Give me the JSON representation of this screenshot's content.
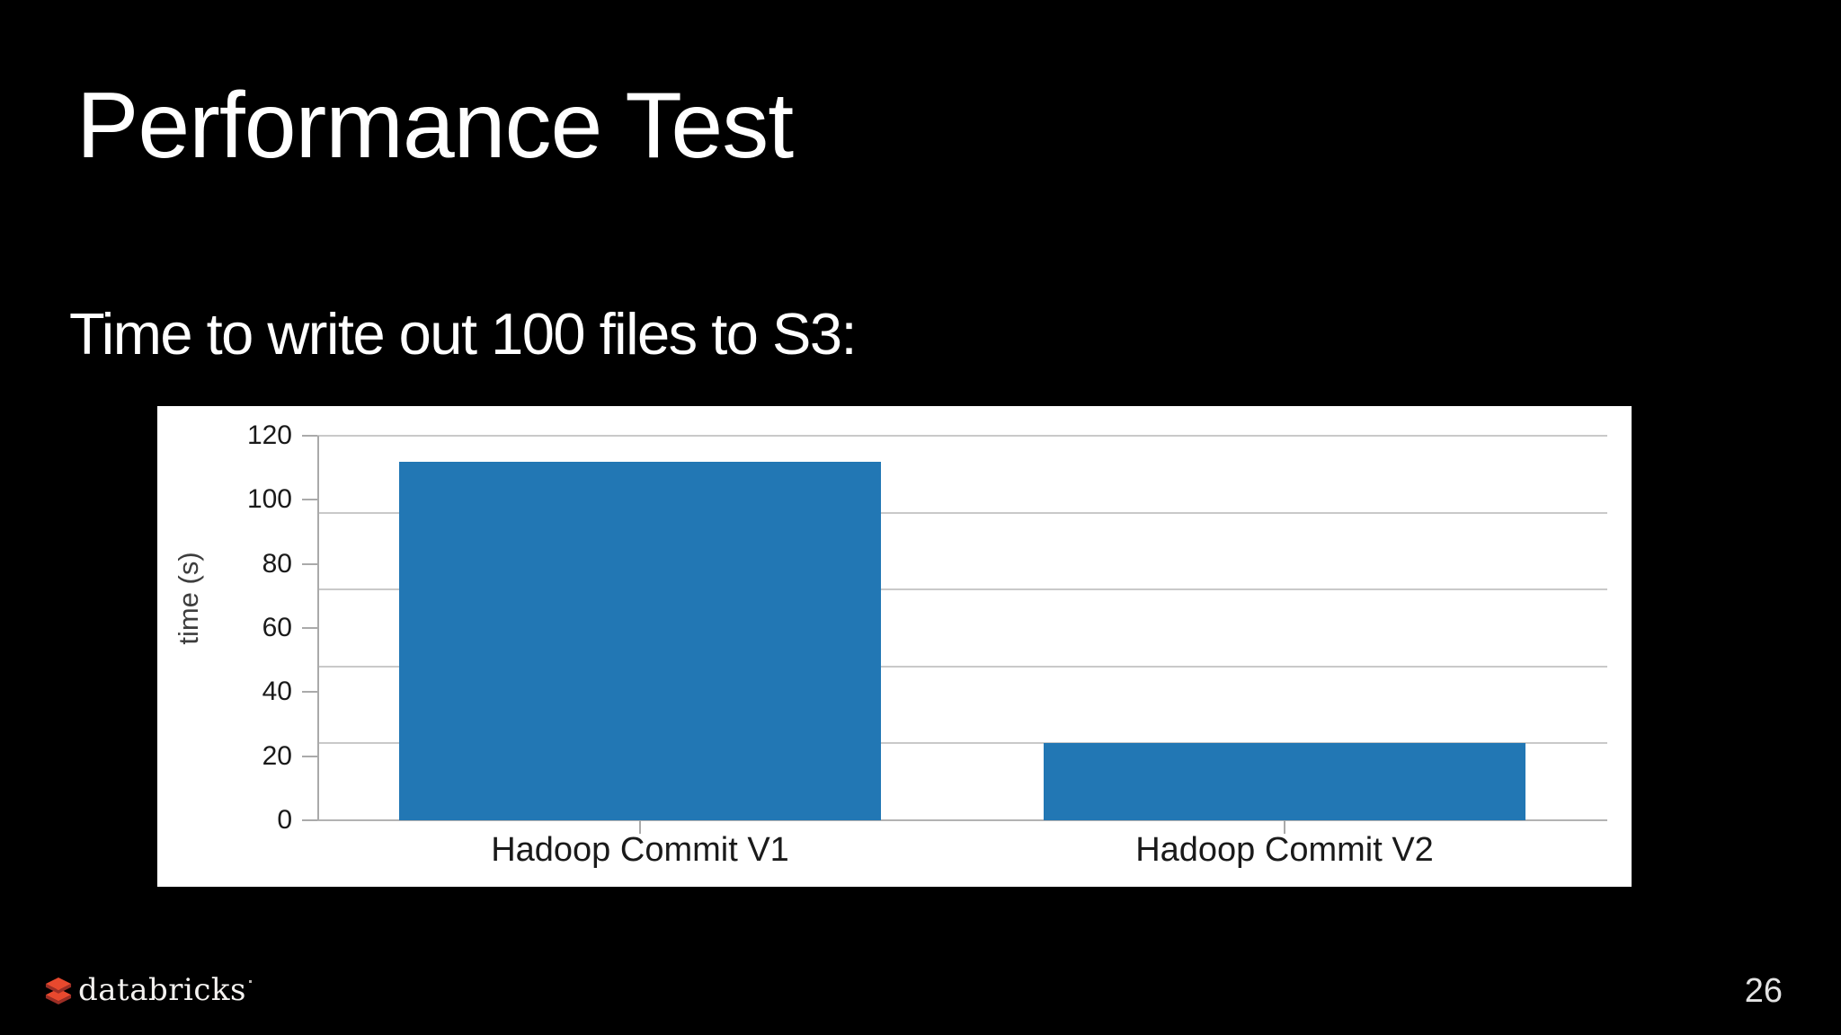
{
  "slide": {
    "title": "Performance Test",
    "subtitle": "Time to write out 100 files to S3:",
    "page_number": "26"
  },
  "footer": {
    "logo_text": "databricks",
    "logo_icon": "databricks-stacked-diamonds-icon"
  },
  "colors": {
    "background": "#000000",
    "heading_text": "#ffffff",
    "panel_background": "#ffffff",
    "bar": "#2277b4",
    "gridline": "#c9c9c9",
    "axis": "#aaaaaa",
    "baseline": "#b3b3b3",
    "chart_label": "#1a1a1a",
    "y_axis_title": "#3d3d3d",
    "page_number": "#e3e3e3",
    "logo_bright_red": "#e8492e",
    "logo_dark_red": "#9c2e25",
    "logo_text": "#f4f2f0"
  },
  "chart_data": {
    "type": "bar",
    "title": "",
    "categories": [
      "Hadoop Commit V1",
      "Hadoop Commit V2"
    ],
    "values": [
      112,
      24
    ],
    "xlabel": "",
    "ylabel": "time (s)",
    "ylim": [
      0,
      120
    ],
    "yticks": [
      0,
      20,
      40,
      60,
      80,
      100,
      120
    ],
    "gridline_values": [
      0,
      24,
      48,
      72,
      96,
      120
    ],
    "grid": "on",
    "legend_position": "none",
    "bar_color": "#2277b4",
    "plot_background": "#ffffff"
  }
}
